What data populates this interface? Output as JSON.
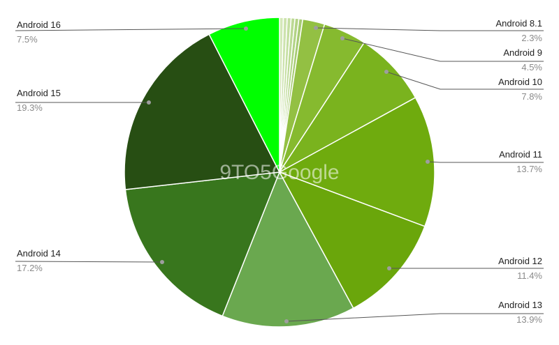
{
  "watermark": "9TO5Google",
  "chart_data": {
    "type": "pie",
    "start_angle": "top, clockwise",
    "legend": "none (callout labels)",
    "slices": [
      {
        "name": "",
        "value": 0.4,
        "color": "#d4e8b8"
      },
      {
        "name": "",
        "value": 0.4,
        "color": "#cde3ae"
      },
      {
        "name": "",
        "value": 0.4,
        "color": "#c5dfa2"
      },
      {
        "name": "",
        "value": 0.4,
        "color": "#bcd994"
      },
      {
        "name": "",
        "value": 0.4,
        "color": "#b2d385"
      },
      {
        "name": "",
        "value": 0.4,
        "color": "#a6cb72"
      },
      {
        "name": "Android 8.1",
        "value": 2.3,
        "label": "2.3%",
        "color": "#93c043"
      },
      {
        "name": "Android 9",
        "value": 4.5,
        "label": "4.5%",
        "color": "#86ba2f"
      },
      {
        "name": "Android 10",
        "value": 7.8,
        "label": "7.8%",
        "color": "#7ab31e"
      },
      {
        "name": "Android 11",
        "value": 13.7,
        "label": "13.7%",
        "color": "#6fab0e"
      },
      {
        "name": "Android 12",
        "value": 11.4,
        "label": "11.4%",
        "color": "#6aa60b"
      },
      {
        "name": "Android 13",
        "value": 13.9,
        "label": "13.9%",
        "color": "#6aa84f"
      },
      {
        "name": "Android 14",
        "value": 17.2,
        "label": "17.2%",
        "color": "#38761d"
      },
      {
        "name": "Android 15",
        "value": 19.3,
        "label": "19.3%",
        "color": "#274e13"
      },
      {
        "name": "Android 16",
        "value": 7.5,
        "label": "7.5%",
        "color": "#00ff00"
      }
    ]
  }
}
